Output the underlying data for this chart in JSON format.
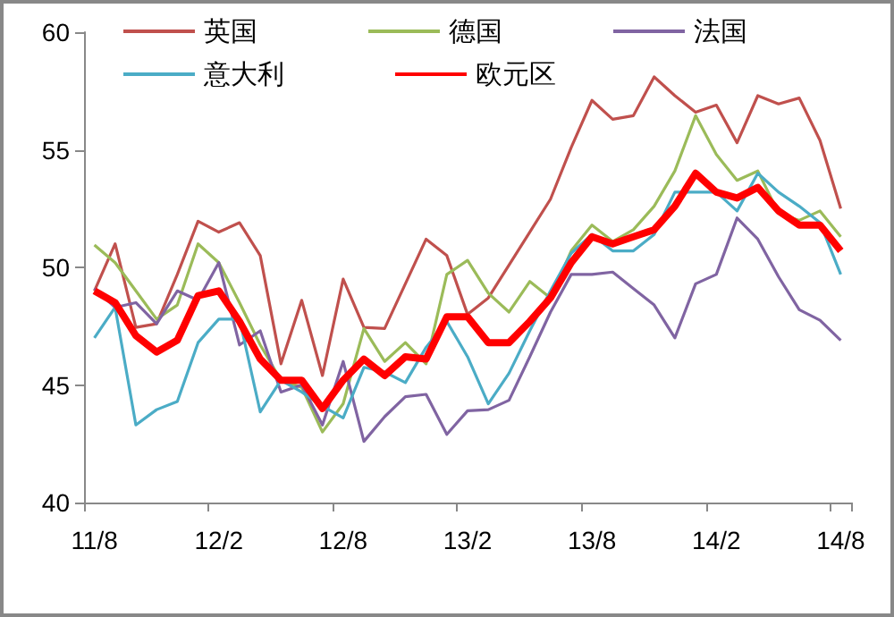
{
  "chart_data": {
    "type": "line",
    "categories": [
      "11/8",
      null,
      null,
      null,
      null,
      null,
      "12/2",
      null,
      null,
      null,
      null,
      null,
      "12/8",
      null,
      null,
      null,
      null,
      null,
      "13/2",
      null,
      null,
      null,
      null,
      null,
      "13/8",
      null,
      null,
      null,
      null,
      null,
      "14/2",
      null,
      null,
      null,
      null,
      null,
      "14/8"
    ],
    "series": [
      {
        "name": "英国",
        "color": "#c0504d",
        "values": [
          49.0,
          51.0,
          47.45,
          47.6,
          49.7,
          51.96,
          51.5,
          51.9,
          50.5,
          45.9,
          48.6,
          45.4,
          49.5,
          47.45,
          47.4,
          49.3,
          51.2,
          50.5,
          48.0,
          48.7,
          50.1,
          51.5,
          52.9,
          55.1,
          57.1,
          56.3,
          56.45,
          58.1,
          57.3,
          56.6,
          56.9,
          55.3,
          57.3,
          56.95,
          57.2,
          55.4,
          52.5
        ]
      },
      {
        "name": "德国",
        "color": "#9bbb59",
        "values": [
          50.95,
          50.2,
          49.0,
          47.8,
          48.4,
          51.0,
          50.2,
          48.5,
          46.7,
          45.2,
          44.9,
          43.0,
          44.2,
          47.4,
          46.0,
          46.8,
          45.9,
          49.7,
          50.3,
          48.9,
          48.1,
          49.4,
          48.7,
          50.7,
          51.8,
          51.1,
          51.6,
          52.6,
          54.1,
          56.45,
          54.8,
          53.7,
          54.1,
          52.3,
          52.0,
          52.4,
          51.3
        ]
      },
      {
        "name": "法国",
        "color": "#8064a2",
        "values": [
          49.1,
          48.3,
          48.5,
          47.6,
          49.0,
          48.6,
          50.2,
          46.7,
          47.3,
          44.7,
          45.0,
          43.3,
          46.0,
          42.6,
          43.65,
          44.5,
          44.6,
          42.9,
          43.9,
          43.95,
          44.35,
          46.2,
          48.1,
          49.7,
          49.7,
          49.8,
          49.1,
          48.4,
          47.0,
          49.3,
          49.7,
          52.1,
          51.2,
          49.6,
          48.2,
          47.75,
          46.9
        ]
      },
      {
        "name": "意大利",
        "color": "#4bacc6",
        "values": [
          47.0,
          48.3,
          43.3,
          43.95,
          44.3,
          46.8,
          47.8,
          47.8,
          43.85,
          45.2,
          44.7,
          44.1,
          43.6,
          45.75,
          45.55,
          45.1,
          46.6,
          47.7,
          46.2,
          44.2,
          45.5,
          47.3,
          49.0,
          50.6,
          51.4,
          50.7,
          50.7,
          51.4,
          53.2,
          53.2,
          53.2,
          52.4,
          54.0,
          53.2,
          52.6,
          51.9,
          49.7
        ]
      },
      {
        "name": "欧元区",
        "color": "#ff0000",
        "values": [
          49.0,
          48.5,
          47.1,
          46.4,
          46.9,
          48.8,
          49.0,
          47.7,
          46.1,
          45.2,
          45.2,
          44.0,
          45.2,
          46.1,
          45.4,
          46.2,
          46.1,
          47.9,
          47.9,
          46.8,
          46.8,
          47.7,
          48.7,
          50.2,
          51.3,
          51.0,
          51.3,
          51.6,
          52.6,
          54.0,
          53.2,
          52.95,
          53.4,
          52.4,
          51.8,
          51.8,
          50.7
        ]
      }
    ],
    "ylim": [
      40,
      60
    ],
    "yticks": [
      40,
      45,
      50,
      55,
      60
    ],
    "grid": false,
    "legend": "top",
    "marker": "none"
  }
}
